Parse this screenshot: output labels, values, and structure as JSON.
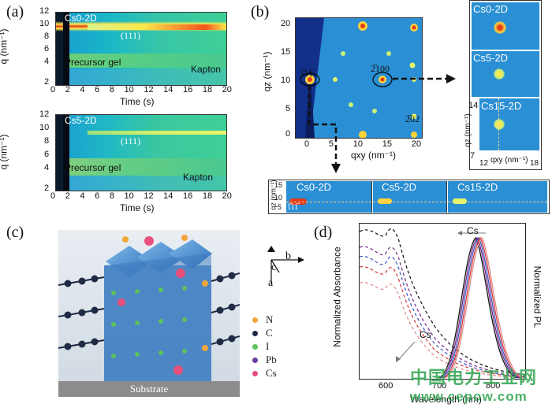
{
  "panel_a": {
    "label": "(a)",
    "top": {
      "tag": "Cs0-2D",
      "peak": "(111)",
      "precursor": "Precursor gel",
      "substrate": "Kapton",
      "ylabel": "q (nm⁻¹)",
      "xlabel": "Time (s)",
      "yticks": [
        "12",
        "10",
        "8",
        "6",
        "4",
        "2"
      ],
      "xticks": [
        "0",
        "2",
        "4",
        "6",
        "8",
        "10",
        "12",
        "14",
        "16",
        "18",
        "20"
      ]
    },
    "bottom": {
      "tag": "Cs5-2D",
      "peak": "(111)",
      "precursor": "Precursor gel",
      "substrate": "Kapton",
      "ylabel": "q (nm⁻¹)",
      "xlabel": "Time (s)",
      "yticks": [
        "12",
        "10",
        "8",
        "6",
        "4",
        "2"
      ],
      "xticks": [
        "0",
        "2",
        "4",
        "6",
        "8",
        "10",
        "12",
        "14",
        "16",
        "18",
        "20"
      ]
    }
  },
  "panel_b": {
    "label": "(b)",
    "ylabel": "qz (nm⁻¹)",
    "xlabel": "qxy (nm⁻¹)",
    "yticks": [
      "20",
      "15",
      "10",
      "5",
      "0"
    ],
    "xticks": [
      "0",
      "5",
      "10",
      "15",
      "20"
    ],
    "reflections": [
      "ī11̄",
      "ĉ2100",
      "2̅0̅2"
    ],
    "refl_a": "1̅11̅",
    "refl_b": "2̅100",
    "refl_c": "2̅02",
    "insets": [
      "Cs0-2D",
      "Cs5-2D",
      "Cs15-2D"
    ],
    "inset_axis": {
      "ylabel": "qz (nm⁻¹)",
      "xlabel": "qxy (nm⁻¹)",
      "y_top": "14",
      "y_bot": "7",
      "x_left": "12",
      "x_right": "18"
    },
    "strip": {
      "ylabel": "qz (nm⁻¹)",
      "yticks": [
        "15",
        "10",
        "5"
      ],
      "tags": [
        "Cs0-2D",
        "Cs5-2D",
        "Cs15-2D"
      ],
      "refl": "1̅11̅"
    }
  },
  "panel_c": {
    "label": "(c)",
    "substrate": "Substrate",
    "axes": {
      "a": "a",
      "b": "b",
      "c": "c"
    },
    "legend": [
      {
        "name": "N",
        "color": "#f2a63a"
      },
      {
        "name": "C",
        "color": "#1f2a44"
      },
      {
        "name": "I",
        "color": "#5cc25c"
      },
      {
        "name": "Pb",
        "color": "#6a3fa0"
      },
      {
        "name": "Cs",
        "color": "#e6507a"
      }
    ]
  },
  "panel_d": {
    "label": "(d)",
    "ylabel_left": "Normalized Absorbance",
    "ylabel_right": "Normalized PL",
    "xlabel": "Wavelength (nm)",
    "xticks": [
      "600",
      "700",
      "800"
    ],
    "cs_top": "Cs",
    "cs_bottom": "Cs",
    "chart_data": {
      "type": "line",
      "x_range": [
        550,
        820
      ],
      "pl_peak_nm": [
        752,
        755,
        758,
        761,
        764
      ],
      "absorbance_exciton_nm": [
        560,
        604
      ]
    }
  },
  "watermark": {
    "cn": "中国电力工业网",
    "url": "www.cepow.com"
  }
}
